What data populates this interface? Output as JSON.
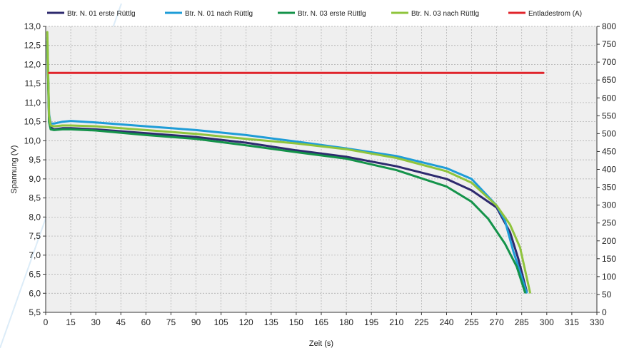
{
  "chart_data": {
    "type": "line",
    "xlabel": "Zeit (s)",
    "ylabel": "Spannung (V)",
    "xlim": [
      0,
      330
    ],
    "ylim": [
      5.5,
      13.0
    ],
    "y2lim": [
      0,
      800
    ],
    "x_ticks": [
      "0",
      "15",
      "30",
      "45",
      "60",
      "75",
      "90",
      "105",
      "120",
      "135",
      "150",
      "165",
      "180",
      "195",
      "210",
      "225",
      "240",
      "255",
      "270",
      "285",
      "300",
      "315",
      "330"
    ],
    "y_ticks": [
      "5,5",
      "6,0",
      "6,5",
      "7,0",
      "7,5",
      "8,0",
      "8,5",
      "9,0",
      "9,5",
      "10,0",
      "10,5",
      "11,0",
      "11,5",
      "12,0",
      "12,5",
      "13,0"
    ],
    "y2_ticks": [
      "0",
      "50",
      "100",
      "150",
      "200",
      "250",
      "300",
      "350",
      "400",
      "450",
      "500",
      "550",
      "600",
      "650",
      "700",
      "750",
      "800"
    ],
    "grid": true,
    "legend_position": "top",
    "series": [
      {
        "name": "Btr.  N. 01 erste Rüttlg",
        "color": "#2e2a6e",
        "axis": "left",
        "x": [
          1,
          2,
          3,
          5,
          10,
          15,
          30,
          60,
          90,
          120,
          150,
          180,
          210,
          240,
          255,
          270,
          278,
          283,
          288
        ],
        "y": [
          12.6,
          10.6,
          10.35,
          10.3,
          10.33,
          10.33,
          10.3,
          10.2,
          10.1,
          9.95,
          9.75,
          9.58,
          9.33,
          9.0,
          8.7,
          8.25,
          7.6,
          6.9,
          6.05
        ]
      },
      {
        "name": "Btr.  N. 01 nach Rüttlg",
        "color": "#1e9cd7",
        "axis": "left",
        "x": [
          1,
          2,
          3,
          5,
          10,
          15,
          30,
          60,
          90,
          120,
          150,
          180,
          210,
          240,
          255,
          270,
          275,
          280,
          288
        ],
        "y": [
          12.7,
          10.7,
          10.45,
          10.45,
          10.5,
          10.52,
          10.48,
          10.38,
          10.28,
          10.15,
          9.98,
          9.8,
          9.6,
          9.28,
          9.0,
          8.3,
          7.9,
          7.1,
          6.02
        ]
      },
      {
        "name": "Btr.  N. 03 erste Rüttlg",
        "color": "#14934a",
        "axis": "left",
        "x": [
          1,
          2,
          3,
          5,
          10,
          15,
          30,
          60,
          90,
          120,
          150,
          180,
          210,
          240,
          255,
          265,
          275,
          282,
          287
        ],
        "y": [
          12.5,
          10.5,
          10.3,
          10.28,
          10.3,
          10.3,
          10.27,
          10.15,
          10.05,
          9.88,
          9.7,
          9.53,
          9.23,
          8.8,
          8.4,
          7.95,
          7.3,
          6.7,
          6.02
        ]
      },
      {
        "name": "Btr.  N. 03 nach Rüttlg",
        "color": "#8fc43c",
        "axis": "left",
        "x": [
          1,
          2,
          3,
          5,
          10,
          15,
          30,
          60,
          90,
          120,
          150,
          180,
          210,
          240,
          255,
          270,
          278,
          284,
          290
        ],
        "y": [
          12.85,
          10.65,
          10.4,
          10.38,
          10.4,
          10.4,
          10.38,
          10.28,
          10.18,
          10.05,
          9.93,
          9.78,
          9.55,
          9.2,
          8.9,
          8.3,
          7.8,
          7.2,
          6.02
        ]
      },
      {
        "name": "Entladestrom (A)",
        "color": "#e0242b",
        "axis": "right",
        "x": [
          2,
          298
        ],
        "y": [
          670,
          670
        ]
      }
    ]
  }
}
